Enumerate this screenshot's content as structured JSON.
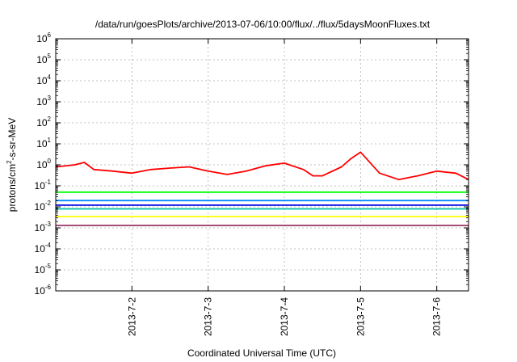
{
  "chart_data": {
    "type": "line",
    "title": "/data/run/goesPlots/archive/2013-07-06/10:00/flux/../flux/5daysMoonFluxes.txt",
    "xlabel": "Coordinated Universal Time (UTC)",
    "ylabel": "protons/cm²-s-sr-MeV",
    "ylabel_parts": {
      "base": "protons/cm",
      "sup": "2",
      "rest": "-s-sr-MeV"
    },
    "y_scale": "log",
    "ylim": [
      1e-06,
      1000000.0
    ],
    "y_ticks": [
      {
        "base": "10",
        "exp": "-6"
      },
      {
        "base": "10",
        "exp": "-5"
      },
      {
        "base": "10",
        "exp": "-4"
      },
      {
        "base": "10",
        "exp": "-3"
      },
      {
        "base": "10",
        "exp": "-2"
      },
      {
        "base": "10",
        "exp": "-1"
      },
      {
        "base": "10",
        "exp": "0"
      },
      {
        "base": "10",
        "exp": "1"
      },
      {
        "base": "10",
        "exp": "2"
      },
      {
        "base": "10",
        "exp": "3"
      },
      {
        "base": "10",
        "exp": "4"
      },
      {
        "base": "10",
        "exp": "5"
      },
      {
        "base": "10",
        "exp": "6"
      }
    ],
    "xlim": [
      "2013-07-01T00:00",
      "2013-07-06T10:00"
    ],
    "x_ticks": [
      "2013-7-2",
      "2013-7-3",
      "2013-7-4",
      "2013-7-5",
      "2013-7-6"
    ],
    "grid": true,
    "series": [
      {
        "color": "#ff0000",
        "x": [
          "2013-07-01T00:00",
          "2013-07-01T06:00",
          "2013-07-01T09:00",
          "2013-07-01T12:00",
          "2013-07-01T18:00",
          "2013-07-02T00:00",
          "2013-07-02T06:00",
          "2013-07-02T12:00",
          "2013-07-02T18:00",
          "2013-07-03T00:00",
          "2013-07-03T06:00",
          "2013-07-03T12:00",
          "2013-07-03T18:00",
          "2013-07-04T00:00",
          "2013-07-04T06:00",
          "2013-07-04T09:00",
          "2013-07-04T12:00",
          "2013-07-04T18:00",
          "2013-07-04T21:00",
          "2013-07-05T00:00",
          "2013-07-05T06:00",
          "2013-07-05T12:00",
          "2013-07-05T18:00",
          "2013-07-06T00:00",
          "2013-07-06T06:00",
          "2013-07-06T10:00"
        ],
        "y": [
          0.8,
          1.0,
          1.3,
          0.6,
          0.5,
          0.4,
          0.6,
          0.7,
          0.8,
          0.5,
          0.35,
          0.5,
          0.9,
          1.2,
          0.6,
          0.3,
          0.3,
          0.8,
          2.0,
          4.0,
          0.4,
          0.2,
          0.3,
          0.5,
          0.4,
          0.2
        ]
      },
      {
        "color": "#00ff00",
        "x": [
          "2013-07-01T00:00",
          "2013-07-02T00:00",
          "2013-07-03T00:00",
          "2013-07-04T00:00",
          "2013-07-05T00:00",
          "2013-07-06T00:00",
          "2013-07-06T10:00"
        ],
        "y": [
          0.05,
          0.05,
          0.05,
          0.05,
          0.05,
          0.05,
          0.05
        ]
      },
      {
        "color": "#0088ff",
        "x": [
          "2013-07-01T00:00",
          "2013-07-02T00:00",
          "2013-07-03T00:00",
          "2013-07-04T00:00",
          "2013-07-05T00:00",
          "2013-07-06T00:00",
          "2013-07-06T10:00"
        ],
        "y": [
          0.02,
          0.02,
          0.02,
          0.02,
          0.02,
          0.02,
          0.02
        ]
      },
      {
        "color": "#00bbaa",
        "x": [
          "2013-07-01T00:00",
          "2013-07-02T00:00",
          "2013-07-03T00:00",
          "2013-07-04T00:00",
          "2013-07-05T00:00",
          "2013-07-06T00:00",
          "2013-07-06T10:00"
        ],
        "y": [
          0.008,
          0.008,
          0.008,
          0.008,
          0.008,
          0.008,
          0.008
        ]
      },
      {
        "color": "#0000dd",
        "x": [
          "2013-07-01T00:00",
          "2013-07-02T00:00",
          "2013-07-03T00:00",
          "2013-07-04T00:00",
          "2013-07-05T00:00",
          "2013-07-06T00:00",
          "2013-07-06T10:00"
        ],
        "y": [
          0.012,
          0.012,
          0.012,
          0.012,
          0.012,
          0.012,
          0.012
        ]
      },
      {
        "color": "#ffff00",
        "x": [
          "2013-07-01T00:00",
          "2013-07-02T00:00",
          "2013-07-03T00:00",
          "2013-07-04T00:00",
          "2013-07-05T00:00",
          "2013-07-06T00:00",
          "2013-07-06T10:00"
        ],
        "y": [
          0.0035,
          0.0035,
          0.0035,
          0.0035,
          0.0035,
          0.0035,
          0.0035
        ]
      },
      {
        "color": "#993366",
        "x": [
          "2013-07-01T00:00",
          "2013-07-02T00:00",
          "2013-07-03T00:00",
          "2013-07-04T00:00",
          "2013-07-05T00:00",
          "2013-07-06T00:00",
          "2013-07-06T10:00"
        ],
        "y": [
          0.0013,
          0.0013,
          0.0013,
          0.0013,
          0.0013,
          0.0013,
          0.0013
        ]
      }
    ]
  }
}
